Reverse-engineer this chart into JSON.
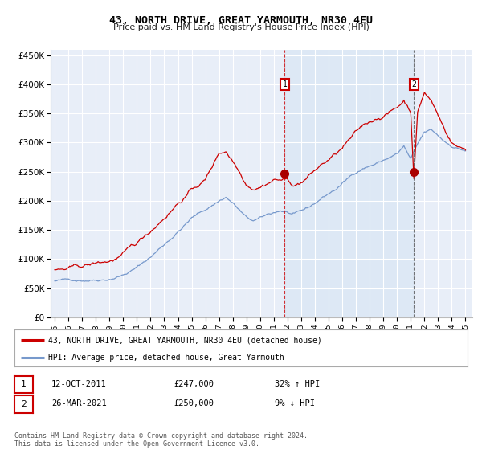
{
  "title": "43, NORTH DRIVE, GREAT YARMOUTH, NR30 4EU",
  "subtitle": "Price paid vs. HM Land Registry's House Price Index (HPI)",
  "legend_line1": "43, NORTH DRIVE, GREAT YARMOUTH, NR30 4EU (detached house)",
  "legend_line2": "HPI: Average price, detached house, Great Yarmouth",
  "annotation1_date": "12-OCT-2011",
  "annotation1_price": "£247,000",
  "annotation1_hpi": "32% ↑ HPI",
  "annotation2_date": "26-MAR-2021",
  "annotation2_price": "£250,000",
  "annotation2_hpi": "9% ↓ HPI",
  "footer": "Contains HM Land Registry data © Crown copyright and database right 2024.\nThis data is licensed under the Open Government Licence v3.0.",
  "red_line_color": "#cc0000",
  "blue_line_color": "#7799cc",
  "shade_color": "#dde8f5",
  "marker_color": "#aa0000",
  "vline1_color": "#cc0000",
  "vline2_color": "#555555",
  "annotation_box_color": "#cc0000",
  "plot_bg_color": "#e8eef8",
  "grid_color": "#ffffff",
  "sale1_x": 2011.79,
  "sale1_y": 247000,
  "sale2_x": 2021.23,
  "sale2_y": 250000,
  "ylim": [
    0,
    460000
  ],
  "xlim_left": 1994.7,
  "xlim_right": 2025.5
}
